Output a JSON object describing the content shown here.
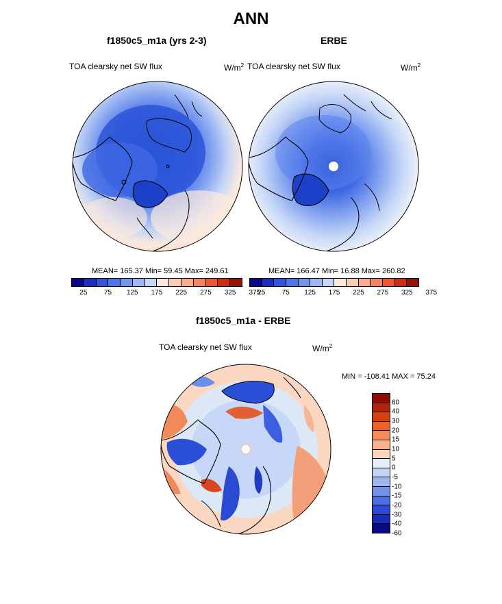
{
  "main_title": "ANN",
  "panels": {
    "left": {
      "title": "f1850c5_m1a (yrs 2-3)",
      "variable": "TOA clearsky net SW flux",
      "units_base": "W/m",
      "units_exp": "2",
      "stats": "MEAN= 165.37  Min=  59.45  Max= 249.61"
    },
    "right": {
      "title": "ERBE",
      "variable": "TOA clearsky net SW flux",
      "units_base": "W/m",
      "units_exp": "2",
      "stats": "MEAN= 166.47  Min=  16.88  Max= 260.82"
    },
    "diff": {
      "title": "f1850c5_m1a - ERBE",
      "variable": "TOA clearsky net SW flux",
      "units_base": "W/m",
      "units_exp": "2",
      "stats": "MIN = -108.41 MAX =  75.24"
    }
  },
  "colorbar_top": {
    "colors": [
      "#08088e",
      "#1a2fc4",
      "#2f56dc",
      "#4b77ea",
      "#6f97f0",
      "#9bb9f4",
      "#c6d8f7",
      "#fae8df",
      "#fbcdb6",
      "#f8ac8c",
      "#f5835f",
      "#ec5630",
      "#d02c12",
      "#961207"
    ],
    "tick_labels": [
      "25",
      "75",
      "125",
      "175",
      "225",
      "275",
      "325",
      "375"
    ]
  },
  "colorbar_diff": {
    "colors": [
      "#8e0c00",
      "#b8220c",
      "#d8400f",
      "#f0612a",
      "#f78a55",
      "#f9b08c",
      "#fbd6c1",
      "#e5eefb",
      "#c4d5f6",
      "#9cb7f1",
      "#7293ea",
      "#4c6ee3",
      "#2d4bd7",
      "#1a2bb5",
      "#0a0a82"
    ],
    "tick_labels": [
      "60",
      "40",
      "30",
      "20",
      "15",
      "10",
      "5",
      "0",
      "-5",
      "-10",
      "-15",
      "-20",
      "-30",
      "-40",
      "-60"
    ]
  },
  "map_colors": {
    "warm_far": "#f9dccb",
    "warm_mid": "#fbe9de",
    "neutral": "#e8eefa",
    "cool1": "#b8cbf3",
    "cool2": "#7f9ff0",
    "cool3": "#3f68e3",
    "cool4": "#244ed4",
    "diff_pos": "#f08a5a",
    "diff_neg": "#2c4fd8",
    "diff_neutral": "#dde8f7",
    "coast": "#000000"
  }
}
